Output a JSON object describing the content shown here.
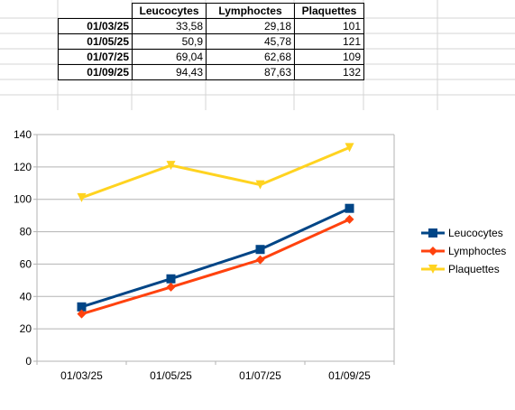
{
  "table": {
    "headers": [
      "",
      "Leucocytes",
      "Lymphoctes",
      "Plaquettes"
    ],
    "rows": [
      {
        "date": "01/03/25",
        "leucocytes": "33,58",
        "lymphoctes": "29,18",
        "plaquettes": "101"
      },
      {
        "date": "01/05/25",
        "leucocytes": "50,9",
        "lymphoctes": "45,78",
        "plaquettes": "121"
      },
      {
        "date": "01/07/25",
        "leucocytes": "69,04",
        "lymphoctes": "62,68",
        "plaquettes": "109"
      },
      {
        "date": "01/09/25",
        "leucocytes": "94,43",
        "lymphoctes": "87,63",
        "plaquettes": "132"
      }
    ]
  },
  "chart_data": {
    "type": "line",
    "categories": [
      "01/03/25",
      "01/05/25",
      "01/07/25",
      "01/09/25"
    ],
    "series": [
      {
        "name": "Leucocytes",
        "values": [
          33.58,
          50.9,
          69.04,
          94.43
        ],
        "color": "#004586",
        "marker": "square"
      },
      {
        "name": "Lymphoctes",
        "values": [
          29.18,
          45.78,
          62.68,
          87.63
        ],
        "color": "#ff420e",
        "marker": "diamond"
      },
      {
        "name": "Plaquettes",
        "values": [
          101,
          121,
          109,
          132
        ],
        "color": "#ffd320",
        "marker": "triangle-down"
      }
    ],
    "ylim": [
      0,
      140
    ],
    "yticks": [
      0,
      20,
      40,
      60,
      80,
      100,
      120,
      140
    ],
    "grid": true,
    "legend": "right",
    "title": "",
    "xlabel": "",
    "ylabel": ""
  }
}
